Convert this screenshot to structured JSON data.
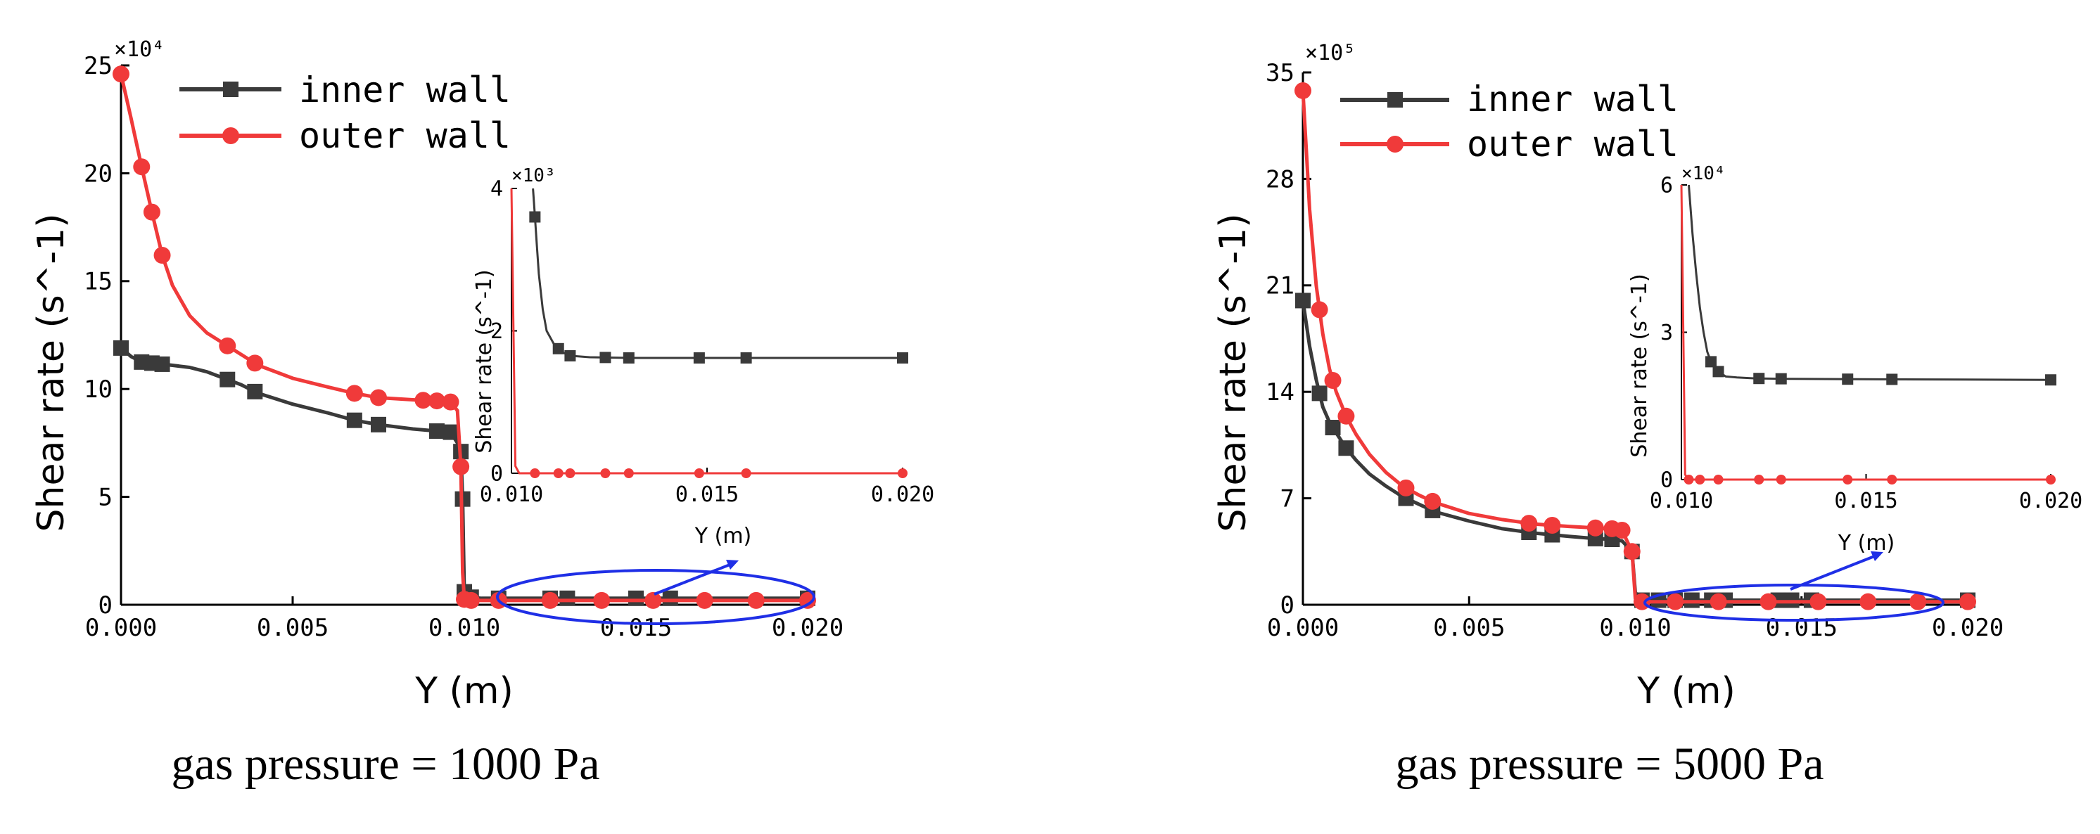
{
  "colors": {
    "inner": "#3a3a3a",
    "outer": "#f03a3a",
    "highlight": "#1f2fe6",
    "axis": "#000000"
  },
  "chart_data": [
    {
      "type": "line",
      "id": "panel-1000",
      "caption": "gas pressure = 1000 Pa",
      "xlabel": "Y (m)",
      "ylabel": "Shear rate (s^-1)",
      "multiplier": "×10⁴",
      "xlim": [
        0,
        0.02
      ],
      "ylim": [
        0,
        25
      ],
      "xticks": [
        "0.000",
        "0.005",
        "0.010",
        "0.015",
        "0.020"
      ],
      "yticks": [
        "0",
        "5",
        "10",
        "15",
        "20",
        "25"
      ],
      "legend": [
        "inner wall",
        "outer wall"
      ],
      "series": [
        {
          "name": "inner wall",
          "x": [
            0,
            0.0003,
            0.0006,
            0.0009,
            0.0012,
            0.0015,
            0.002,
            0.0025,
            0.003,
            0.0035,
            0.004,
            0.005,
            0.006,
            0.0068,
            0.0075,
            0.0085,
            0.0092,
            0.0096,
            0.0098,
            0.0099,
            0.00995,
            0.01,
            0.0102,
            0.0105,
            0.011,
            0.012,
            0.013,
            0.015,
            0.016,
            0.02
          ],
          "values": [
            11.9,
            11.5,
            11.25,
            11.2,
            11.15,
            11.1,
            11.0,
            10.8,
            10.5,
            10.2,
            9.8,
            9.3,
            8.9,
            8.55,
            8.35,
            8.15,
            8.05,
            8.0,
            7.5,
            7.1,
            4.9,
            0.6,
            0.35,
            0.3,
            0.3,
            0.3,
            0.3,
            0.3,
            0.3,
            0.3
          ],
          "markers": [
            0,
            0.0006,
            0.0009,
            0.0012,
            0.0031,
            0.0039,
            0.0068,
            0.0075,
            0.0092,
            0.0096,
            0.0099,
            0.00995,
            0.01,
            0.0102,
            0.011,
            0.0125,
            0.013,
            0.015,
            0.016,
            0.02
          ]
        },
        {
          "name": "outer wall",
          "x": [
            0,
            0.0003,
            0.0006,
            0.0009,
            0.0012,
            0.0015,
            0.002,
            0.0025,
            0.003,
            0.0035,
            0.004,
            0.005,
            0.006,
            0.0068,
            0.0075,
            0.0085,
            0.0092,
            0.0096,
            0.0098,
            0.0099,
            0.00995,
            0.01,
            0.0102,
            0.0105,
            0.011,
            0.012,
            0.014,
            0.016,
            0.018,
            0.02
          ],
          "values": [
            24.6,
            22.5,
            20.3,
            18.2,
            16.2,
            14.8,
            13.4,
            12.6,
            12.1,
            11.6,
            11.1,
            10.5,
            10.1,
            9.8,
            9.6,
            9.5,
            9.45,
            9.4,
            9.0,
            6.4,
            1.5,
            0.25,
            0.2,
            0.2,
            0.2,
            0.2,
            0.2,
            0.2,
            0.2,
            0.2
          ],
          "markers": [
            0,
            0.0006,
            0.0009,
            0.0012,
            0.0031,
            0.0039,
            0.0068,
            0.0075,
            0.0088,
            0.0092,
            0.0096,
            0.0099,
            0.01,
            0.0102,
            0.011,
            0.0125,
            0.014,
            0.0155,
            0.017,
            0.0185,
            0.02
          ]
        }
      ],
      "inset": {
        "multiplier": "×10³",
        "xlabel": "Y (m)",
        "ylabel": "Shear rate (s^-1)",
        "xlim": [
          0.01,
          0.02
        ],
        "ylim": [
          0,
          4
        ],
        "xticks": [
          "0.010",
          "0.015",
          "0.020"
        ],
        "yticks": [
          "0",
          "2",
          "4"
        ],
        "series": [
          {
            "name": "inner wall",
            "x": [
              0.01055,
              0.0106,
              0.01065,
              0.0107,
              0.0108,
              0.0109,
              0.0111,
              0.0113,
              0.0115,
              0.012,
              0.013,
              0.016,
              0.02
            ],
            "values": [
              4.0,
              3.6,
              3.2,
              2.8,
              2.3,
              2.0,
              1.8,
              1.7,
              1.65,
              1.63,
              1.62,
              1.62,
              1.62
            ],
            "markers": [
              0.0106,
              0.0112,
              0.0115,
              0.0124,
              0.013,
              0.0148,
              0.016,
              0.02
            ]
          },
          {
            "name": "outer wall",
            "x": [
              0.01,
              0.0101,
              0.0102,
              0.012,
              0.015,
              0.02
            ],
            "values": [
              4.0,
              0.1,
              0.0,
              0.0,
              0.0,
              0.0
            ],
            "markers": [
              0.0106,
              0.0112,
              0.0115,
              0.0124,
              0.013,
              0.0148,
              0.016,
              0.02
            ]
          }
        ]
      }
    },
    {
      "type": "line",
      "id": "panel-5000",
      "caption": "gas pressure = 5000 Pa",
      "xlabel": "Y (m)",
      "ylabel": "Shear rate (s^-1)",
      "multiplier": "×10⁵",
      "xlim": [
        0,
        0.02
      ],
      "ylim": [
        0,
        35
      ],
      "xticks": [
        "0.000",
        "0.005",
        "0.010",
        "0.015",
        "0.020"
      ],
      "yticks": [
        "0",
        "7",
        "14",
        "21",
        "28",
        "35"
      ],
      "legend": [
        "inner wall",
        "outer wall"
      ],
      "series": [
        {
          "name": "inner wall",
          "x": [
            0,
            0.0002,
            0.0004,
            0.0006,
            0.0008,
            0.001,
            0.0013,
            0.0016,
            0.002,
            0.0025,
            0.003,
            0.0035,
            0.004,
            0.005,
            0.006,
            0.007,
            0.008,
            0.0088,
            0.0093,
            0.0096,
            0.0099,
            0.01,
            0.0102,
            0.011,
            0.012,
            0.015,
            0.016,
            0.02
          ],
          "values": [
            20.0,
            17.0,
            14.8,
            13.0,
            12.0,
            11.3,
            10.3,
            9.5,
            8.6,
            7.8,
            7.1,
            6.6,
            6.1,
            5.5,
            5.0,
            4.7,
            4.5,
            4.35,
            4.3,
            4.2,
            3.5,
            0.8,
            0.3,
            0.3,
            0.3,
            0.3,
            0.3,
            0.3
          ],
          "markers": [
            0,
            0.0005,
            0.0009,
            0.0013,
            0.0031,
            0.0039,
            0.0068,
            0.0075,
            0.0088,
            0.0093,
            0.0099,
            0.0102,
            0.0107,
            0.0112,
            0.0117,
            0.0123,
            0.0127,
            0.0143,
            0.0147,
            0.0153,
            0.02
          ]
        },
        {
          "name": "outer wall",
          "x": [
            0,
            0.0001,
            0.0002,
            0.0004,
            0.0006,
            0.0008,
            0.001,
            0.0013,
            0.0016,
            0.002,
            0.0025,
            0.003,
            0.0035,
            0.004,
            0.005,
            0.006,
            0.007,
            0.008,
            0.0088,
            0.0093,
            0.0096,
            0.0099,
            0.01,
            0.0102,
            0.012,
            0.016,
            0.02
          ],
          "values": [
            33.8,
            30.0,
            26.0,
            21.0,
            17.8,
            15.5,
            14.0,
            12.4,
            11.2,
            9.9,
            8.7,
            7.8,
            7.2,
            6.7,
            6.0,
            5.6,
            5.3,
            5.15,
            5.05,
            5.0,
            4.9,
            3.5,
            0.4,
            0.2,
            0.2,
            0.2,
            0.2
          ],
          "markers": [
            0,
            0.0005,
            0.0009,
            0.0013,
            0.0031,
            0.0039,
            0.0068,
            0.0075,
            0.0088,
            0.0093,
            0.0096,
            0.0099,
            0.0102,
            0.0112,
            0.0125,
            0.014,
            0.0155,
            0.017,
            0.0185,
            0.02
          ]
        }
      ],
      "inset": {
        "multiplier": "×10⁴",
        "xlabel": "Y (m)",
        "ylabel": "Shear rate (s^-1)",
        "xlim": [
          0.01,
          0.02
        ],
        "ylim": [
          0,
          6
        ],
        "xticks": [
          "0.010",
          "0.015",
          "0.020"
        ],
        "yticks": [
          "0",
          "3",
          "6"
        ],
        "series": [
          {
            "name": "inner wall",
            "x": [
              0.0102,
              0.0103,
              0.0104,
              0.0105,
              0.0106,
              0.0107,
              0.0108,
              0.011,
              0.0112,
              0.0115,
              0.012,
              0.013,
              0.016,
              0.02
            ],
            "values": [
              6.0,
              5.0,
              4.2,
              3.5,
              3.0,
              2.6,
              2.4,
              2.2,
              2.1,
              2.08,
              2.06,
              2.05,
              2.04,
              2.03
            ],
            "markers": [
              0.0108,
              0.011,
              0.0121,
              0.0127,
              0.0145,
              0.0157,
              0.02
            ]
          },
          {
            "name": "outer wall",
            "x": [
              0.01,
              0.0101,
              0.0102,
              0.012,
              0.016,
              0.02
            ],
            "values": [
              6.0,
              0.1,
              0.0,
              0.0,
              0.0,
              0.0
            ],
            "markers": [
              0.0102,
              0.0105,
              0.011,
              0.0121,
              0.0127,
              0.0145,
              0.0157,
              0.02
            ]
          }
        ]
      }
    }
  ]
}
